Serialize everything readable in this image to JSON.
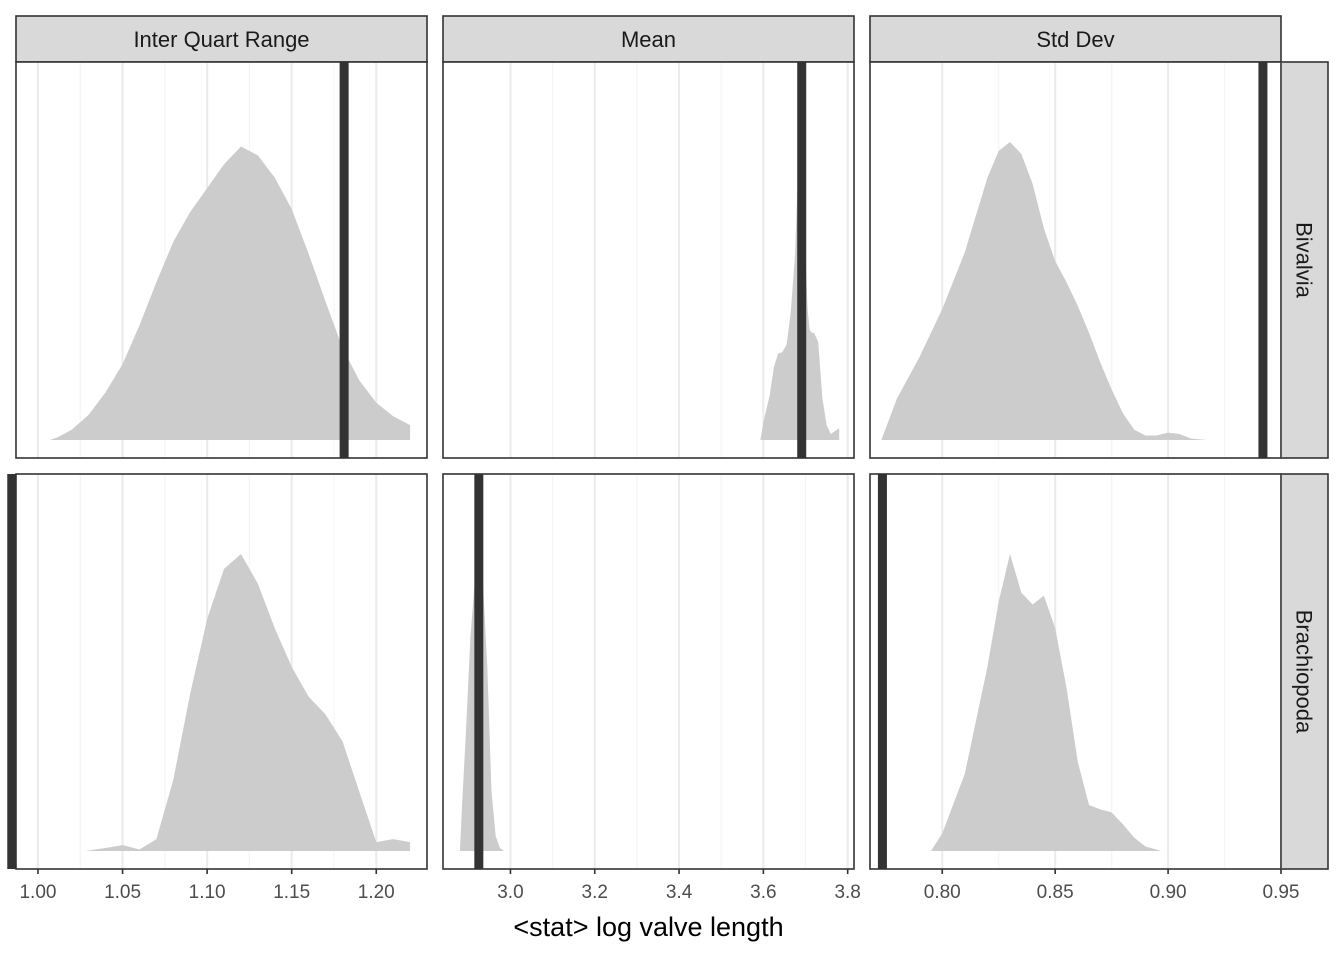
{
  "chart_data": {
    "type": "area",
    "xlabel": "<stat> log valve length",
    "ylabel": "",
    "grid": true,
    "legend": "none",
    "colors": {
      "density_fill": "#cccccc",
      "observed_line": "#333333",
      "strip_fill": "#d9d9d9",
      "panel_border": "#333333",
      "grid_major": "#ebebeb",
      "grid_minor": "#f5f5f5"
    },
    "columns": [
      {
        "strip_label": "Inter Quart Range",
        "xlim": [
          0.987,
          1.23
        ],
        "ticks": [
          1.0,
          1.05,
          1.1,
          1.15,
          1.2
        ],
        "tick_labels": [
          "1.00",
          "1.05",
          "1.10",
          "1.15",
          "1.20"
        ]
      },
      {
        "strip_label": "Mean",
        "xlim": [
          2.84,
          3.815
        ],
        "ticks": [
          3.0,
          3.2,
          3.4,
          3.6,
          3.8
        ],
        "tick_labels": [
          "3.0",
          "3.2",
          "3.4",
          "3.6",
          "3.8"
        ]
      },
      {
        "strip_label": "Std Dev",
        "xlim": [
          0.768,
          0.95
        ],
        "ticks": [
          0.8,
          0.85,
          0.9,
          0.95
        ],
        "tick_labels": [
          "0.80",
          "0.85",
          "0.90",
          "0.95"
        ]
      }
    ],
    "rows": [
      {
        "strip_label": "Bivalvia"
      },
      {
        "strip_label": "Brachiopoda"
      }
    ],
    "panels": [
      {
        "row": 0,
        "col": 0,
        "observed": 1.181,
        "density": {
          "x": [
            1.007,
            1.012,
            1.02,
            1.03,
            1.04,
            1.05,
            1.06,
            1.07,
            1.08,
            1.09,
            1.1,
            1.11,
            1.12,
            1.13,
            1.14,
            1.15,
            1.16,
            1.17,
            1.18,
            1.19,
            1.2,
            1.21,
            1.22
          ],
          "y": [
            0.0,
            0.01,
            0.035,
            0.085,
            0.16,
            0.255,
            0.385,
            0.53,
            0.665,
            0.765,
            0.845,
            0.925,
            0.985,
            0.955,
            0.88,
            0.775,
            0.625,
            0.465,
            0.31,
            0.2,
            0.125,
            0.08,
            0.05
          ]
        }
      },
      {
        "row": 0,
        "col": 1,
        "observed": 3.691,
        "density": {
          "x": [
            3.593,
            3.6,
            3.615,
            3.625,
            3.635,
            3.645,
            3.655,
            3.665,
            3.675,
            3.68,
            3.685,
            3.69,
            3.695,
            3.7,
            3.705,
            3.71,
            3.715,
            3.72,
            3.73,
            3.74,
            3.75,
            3.76,
            3.77,
            3.78
          ],
          "y": [
            0.0,
            0.06,
            0.15,
            0.245,
            0.29,
            0.295,
            0.32,
            0.43,
            0.62,
            0.82,
            0.98,
            1.0,
            0.88,
            0.62,
            0.44,
            0.37,
            0.36,
            0.36,
            0.33,
            0.14,
            0.05,
            0.02,
            0.03,
            0.04
          ]
        }
      },
      {
        "row": 0,
        "col": 2,
        "observed": 0.942,
        "density": {
          "x": [
            0.773,
            0.78,
            0.79,
            0.8,
            0.81,
            0.82,
            0.825,
            0.83,
            0.835,
            0.84,
            0.845,
            0.85,
            0.855,
            0.86,
            0.865,
            0.87,
            0.875,
            0.88,
            0.885,
            0.89,
            0.895,
            0.9,
            0.905,
            0.91,
            0.917
          ],
          "y": [
            0.0,
            0.14,
            0.28,
            0.44,
            0.63,
            0.88,
            0.97,
            1.0,
            0.96,
            0.86,
            0.71,
            0.6,
            0.53,
            0.45,
            0.36,
            0.26,
            0.17,
            0.09,
            0.035,
            0.015,
            0.015,
            0.025,
            0.02,
            0.005,
            0.0
          ]
        }
      },
      {
        "row": 1,
        "col": 0,
        "observed": 0.9845,
        "density": {
          "x": [
            1.028,
            1.04,
            1.05,
            1.06,
            1.07,
            1.08,
            1.09,
            1.1,
            1.11,
            1.12,
            1.13,
            1.14,
            1.15,
            1.16,
            1.17,
            1.18,
            1.19,
            1.2,
            1.21,
            1.22
          ],
          "y": [
            0.0,
            0.01,
            0.02,
            0.005,
            0.04,
            0.24,
            0.53,
            0.78,
            0.95,
            1.0,
            0.9,
            0.75,
            0.62,
            0.52,
            0.46,
            0.37,
            0.2,
            0.03,
            0.04,
            0.03
          ]
        }
      },
      {
        "row": 1,
        "col": 1,
        "observed": 2.925,
        "density": {
          "x": [
            2.88,
            2.885,
            2.895,
            2.905,
            2.915,
            2.925,
            2.935,
            2.945,
            2.955,
            2.965,
            2.975,
            2.985
          ],
          "y": [
            0.0,
            0.15,
            0.42,
            0.72,
            0.9,
            0.96,
            0.9,
            0.62,
            0.2,
            0.05,
            0.01,
            0.0
          ]
        }
      },
      {
        "row": 1,
        "col": 2,
        "observed": 0.7735,
        "density": {
          "x": [
            0.795,
            0.8,
            0.81,
            0.815,
            0.82,
            0.825,
            0.83,
            0.835,
            0.84,
            0.845,
            0.85,
            0.855,
            0.86,
            0.865,
            0.87,
            0.875,
            0.88,
            0.885,
            0.89,
            0.897
          ],
          "y": [
            0.0,
            0.06,
            0.26,
            0.44,
            0.62,
            0.84,
            1.0,
            0.87,
            0.83,
            0.86,
            0.75,
            0.55,
            0.3,
            0.155,
            0.14,
            0.13,
            0.09,
            0.045,
            0.015,
            0.0
          ]
        }
      }
    ]
  }
}
